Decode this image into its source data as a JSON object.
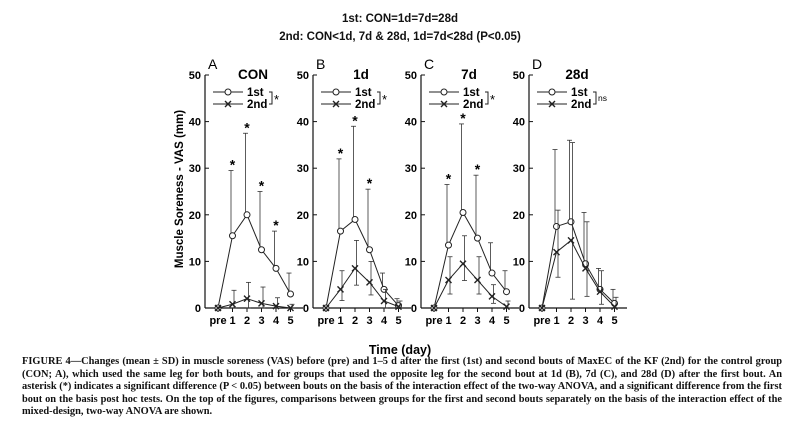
{
  "header": {
    "line1": "1st: CON=1d=7d=28d",
    "line2": "2nd: CON<1d, 7d & 28d, 1d=7d<28d (P<0.05)"
  },
  "y_axis_title": "Muscle Soreness - VAS (mm)",
  "x_axis_title": "Time (day)",
  "legend_first": "1st",
  "legend_second": "2nd",
  "caption": {
    "label": "FIGURE 4",
    "text": "—Changes (mean ± SD) in muscle soreness (VAS) before (pre) and 1–5 d after the first (1st) and second bouts of MaxEC of the KF (2nd) for the control group (CON; A), which used the same leg for both bouts, and for groups that used the opposite leg for the second bout at 1d (B), 7d (C), and 28d (D) after the first bout. An asterisk (*) indicates a significant difference (P < 0.05) between bouts on the basis of the interaction effect of the two-way ANOVA, and a significant difference from the first bout on the basis post hoc tests. On the top of the figures, comparisons between groups for the first and second bouts separately on the basis of the interaction effect of the mixed-design, two-way ANOVA are shown."
  },
  "chart_data": [
    {
      "type": "line",
      "panel": "A",
      "title": "CON",
      "categories": [
        "pre",
        "1",
        "2",
        "3",
        "4",
        "5"
      ],
      "ylim": [
        0,
        50
      ],
      "yticks": [
        0,
        10,
        20,
        30,
        40,
        50
      ],
      "series": [
        {
          "name": "1st",
          "marker": "circle",
          "values": [
            0,
            15.5,
            20,
            12.5,
            8.5,
            3
          ],
          "sd": [
            0,
            14,
            17.5,
            12.5,
            8,
            4.5
          ]
        },
        {
          "name": "2nd",
          "marker": "cross",
          "values": [
            0,
            0.8,
            2,
            1,
            0.4,
            0
          ],
          "sd": [
            0,
            3,
            3.5,
            3.5,
            1.8,
            0.8
          ]
        }
      ],
      "asterisks": [
        "1",
        "2",
        "3",
        "4"
      ],
      "significance": "*"
    },
    {
      "type": "line",
      "panel": "B",
      "title": "1d",
      "categories": [
        "pre",
        "1",
        "2",
        "3",
        "4",
        "5"
      ],
      "ylim": [
        0,
        50
      ],
      "yticks": [
        0,
        10,
        20,
        30,
        40,
        50
      ],
      "series": [
        {
          "name": "1st",
          "marker": "circle",
          "values": [
            0,
            16.5,
            19,
            12.5,
            4,
            0.5
          ],
          "sd": [
            0,
            15.5,
            20,
            13,
            3.5,
            1.5
          ]
        },
        {
          "name": "2nd",
          "marker": "cross",
          "values": [
            0,
            4,
            8.5,
            5.5,
            1.5,
            0.3
          ],
          "sd": [
            0,
            4,
            6,
            4.5,
            2.5,
            1.2
          ]
        }
      ],
      "asterisks": [
        "1",
        "2",
        "3"
      ],
      "significance": "*"
    },
    {
      "type": "line",
      "panel": "C",
      "title": "7d",
      "categories": [
        "pre",
        "1",
        "2",
        "3",
        "4",
        "5"
      ],
      "ylim": [
        0,
        50
      ],
      "yticks": [
        0,
        10,
        20,
        30,
        40,
        50
      ],
      "series": [
        {
          "name": "1st",
          "marker": "circle",
          "values": [
            0,
            13.5,
            20.5,
            15,
            7.5,
            3.5
          ],
          "sd": [
            0,
            13,
            19,
            13.5,
            6.5,
            4.5
          ]
        },
        {
          "name": "2nd",
          "marker": "cross",
          "values": [
            0,
            6,
            9.5,
            6,
            2.5,
            0.3
          ],
          "sd": [
            0,
            5,
            6,
            5,
            2.5,
            1.2
          ]
        }
      ],
      "asterisks": [
        "1",
        "2",
        "3"
      ],
      "significance": "*"
    },
    {
      "type": "line",
      "panel": "D",
      "title": "28d",
      "categories": [
        "pre",
        "1",
        "2",
        "3",
        "4",
        "5"
      ],
      "ylim": [
        0,
        50
      ],
      "yticks": [
        0,
        10,
        20,
        30,
        40,
        50
      ],
      "series": [
        {
          "name": "1st",
          "marker": "circle",
          "values": [
            0,
            17.5,
            18.5,
            9.5,
            4,
            1
          ],
          "sd": [
            0,
            16.5,
            17.5,
            11,
            4.5,
            3
          ]
        },
        {
          "name": "2nd",
          "marker": "cross",
          "values": [
            0,
            12,
            14.5,
            8.5,
            3.5,
            0.3
          ],
          "sd": [
            0,
            9,
            21,
            10,
            4.5,
            2
          ]
        }
      ],
      "asterisks": [],
      "significance": "ns"
    }
  ]
}
